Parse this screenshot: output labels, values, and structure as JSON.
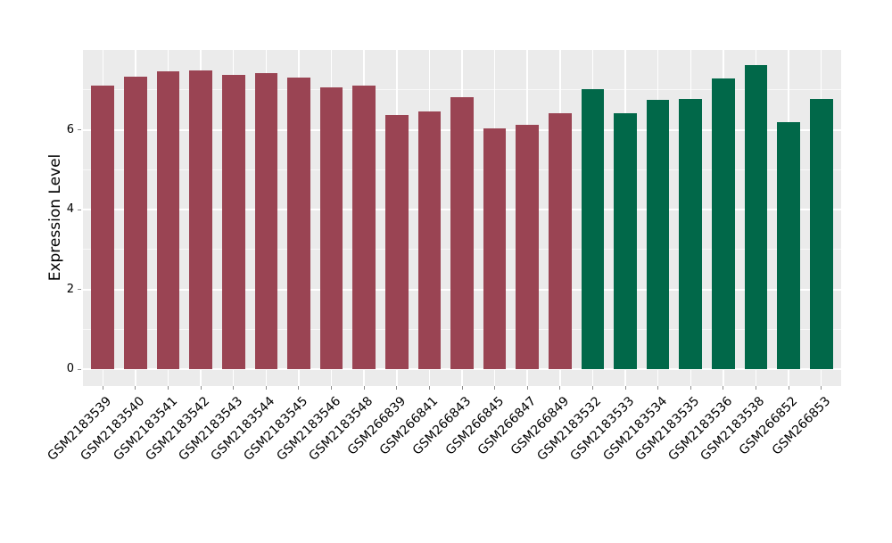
{
  "chart_data": {
    "type": "bar",
    "title": "",
    "xlabel": "",
    "ylabel": "Expression Level",
    "yticks": [
      "0",
      "2",
      "4",
      "6"
    ],
    "ytick_values": [
      0,
      2,
      4,
      6
    ],
    "minor_grid_values": [
      1,
      3,
      5,
      7
    ],
    "ylim": [
      -0.42,
      8.0
    ],
    "legend": "none",
    "grid": "horizontal major+minor white, vertical white at category centers, gray panel",
    "palette": [
      "#9A4453",
      "#016849"
    ],
    "categories": [
      "GSM2183539",
      "GSM2183540",
      "GSM2183541",
      "GSM2183542",
      "GSM2183543",
      "GSM2183544",
      "GSM2183545",
      "GSM2183546",
      "GSM2183548",
      "GSM266839",
      "GSM266841",
      "GSM266843",
      "GSM266845",
      "GSM266847",
      "GSM266849",
      "GSM2183532",
      "GSM2183533",
      "GSM2183534",
      "GSM2183535",
      "GSM2183536",
      "GSM2183538",
      "GSM266852",
      "GSM266853"
    ],
    "values": [
      7.1,
      7.32,
      7.46,
      7.48,
      7.38,
      7.43,
      7.3,
      7.06,
      7.11,
      6.37,
      6.45,
      6.81,
      6.03,
      6.13,
      6.42,
      7.02,
      6.42,
      6.74,
      6.77,
      7.29,
      7.61,
      6.2,
      6.78
    ],
    "color_index": [
      0,
      0,
      0,
      0,
      0,
      0,
      0,
      0,
      0,
      0,
      0,
      0,
      0,
      0,
      0,
      1,
      1,
      1,
      1,
      1,
      1,
      1,
      1
    ]
  },
  "style_colors": {
    "figure_bg": "#FFFFFF",
    "panel_bg": "#EBEBEB",
    "grid_major": "#FFFFFF",
    "grid_minor": "rgba(255,255,255,0.7)",
    "tick_mark": "#8E8E8E",
    "text": "#000000"
  }
}
